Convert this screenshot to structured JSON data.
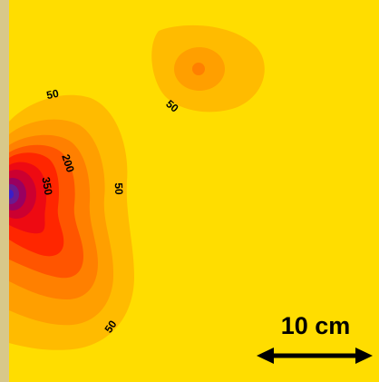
{
  "colors": {
    "background": "#ffdd00",
    "frame": "#d8c88a",
    "level_50": "#ffbb00",
    "level_100": "#ff9f00",
    "level_150": "#ff8000",
    "level_200": "#ff5500",
    "level_250": "#ff2600",
    "level_300": "#ee0a12",
    "level_350": "#cc0030",
    "level_400": "#990060",
    "level_450": "#6a1a90",
    "peak": "#3a1ec8",
    "text": "#000000"
  },
  "contour_labels": {
    "top_left": "50",
    "top_right": "50",
    "middle_right": "50",
    "bottom": "50",
    "inner_200": "200",
    "inner_350": "350"
  },
  "scale_bar": {
    "label": "10 cm"
  }
}
